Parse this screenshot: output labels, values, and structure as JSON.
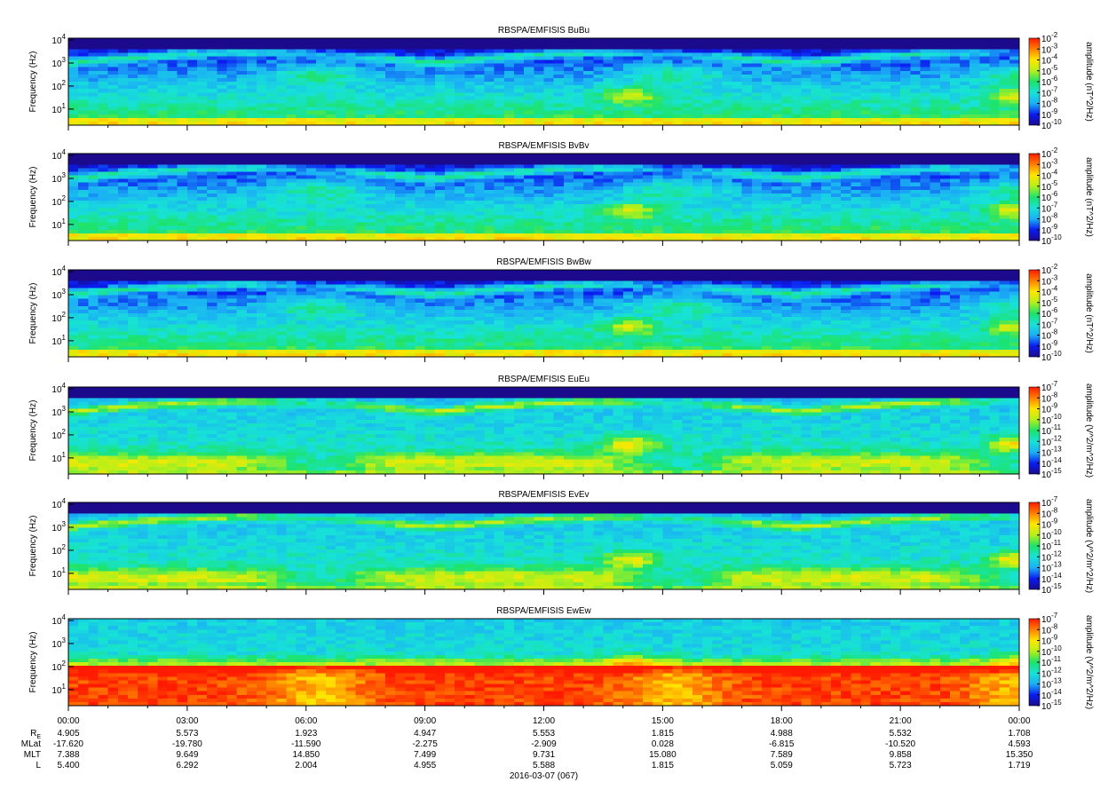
{
  "chart_data": [
    {
      "type": "heatmap",
      "title": "RBSPA/EMFISIS  BuBu",
      "ylabel": "Frequency (Hz)",
      "y_scale": "log",
      "ylim": [
        2,
        12000
      ],
      "y_ticks": [
        {
          "base": "10",
          "exp": "1"
        },
        {
          "base": "10",
          "exp": "2"
        },
        {
          "base": "10",
          "exp": "3"
        },
        {
          "base": "10",
          "exp": "4"
        }
      ],
      "colorbar": {
        "label": "amplitude (nT^2/Hz)",
        "scale": "log",
        "range": [
          1e-10,
          0.01
        ],
        "ticks": [
          {
            "base": "10",
            "exp": "-2"
          },
          {
            "base": "10",
            "exp": "-3"
          },
          {
            "base": "10",
            "exp": "-4"
          },
          {
            "base": "10",
            "exp": "-5"
          },
          {
            "base": "10",
            "exp": "-6"
          },
          {
            "base": "10",
            "exp": "-7"
          },
          {
            "base": "10",
            "exp": "-8"
          },
          {
            "base": "10",
            "exp": "-9"
          },
          {
            "base": "10",
            "exp": "-10"
          }
        ]
      },
      "colormap": [
        "#1b0a8c",
        "#0a1cf0",
        "#1bb0f5",
        "#17e2d7",
        "#1de36a",
        "#b4f01a",
        "#ffe600",
        "#ff7f00",
        "#ff1a00"
      ]
    },
    {
      "type": "heatmap",
      "title": "RBSPA/EMFISIS  BvBv",
      "ylabel": "Frequency (Hz)",
      "y_scale": "log",
      "ylim": [
        2,
        12000
      ],
      "y_ticks": [
        {
          "base": "10",
          "exp": "1"
        },
        {
          "base": "10",
          "exp": "2"
        },
        {
          "base": "10",
          "exp": "3"
        },
        {
          "base": "10",
          "exp": "4"
        }
      ],
      "colorbar": {
        "label": "amplitude (nT^2/Hz)",
        "scale": "log",
        "range": [
          1e-10,
          0.01
        ],
        "ticks": [
          {
            "base": "10",
            "exp": "-2"
          },
          {
            "base": "10",
            "exp": "-3"
          },
          {
            "base": "10",
            "exp": "-4"
          },
          {
            "base": "10",
            "exp": "-5"
          },
          {
            "base": "10",
            "exp": "-6"
          },
          {
            "base": "10",
            "exp": "-7"
          },
          {
            "base": "10",
            "exp": "-8"
          },
          {
            "base": "10",
            "exp": "-9"
          },
          {
            "base": "10",
            "exp": "-10"
          }
        ]
      },
      "colormap": [
        "#1b0a8c",
        "#0a1cf0",
        "#1bb0f5",
        "#17e2d7",
        "#1de36a",
        "#b4f01a",
        "#ffe600",
        "#ff7f00",
        "#ff1a00"
      ]
    },
    {
      "type": "heatmap",
      "title": "RBSPA/EMFISIS  BwBw",
      "ylabel": "Frequency (Hz)",
      "y_scale": "log",
      "ylim": [
        2,
        12000
      ],
      "y_ticks": [
        {
          "base": "10",
          "exp": "1"
        },
        {
          "base": "10",
          "exp": "2"
        },
        {
          "base": "10",
          "exp": "3"
        },
        {
          "base": "10",
          "exp": "4"
        }
      ],
      "colorbar": {
        "label": "amplitude (nT^2/Hz)",
        "scale": "log",
        "range": [
          1e-10,
          0.01
        ],
        "ticks": [
          {
            "base": "10",
            "exp": "-2"
          },
          {
            "base": "10",
            "exp": "-3"
          },
          {
            "base": "10",
            "exp": "-4"
          },
          {
            "base": "10",
            "exp": "-5"
          },
          {
            "base": "10",
            "exp": "-6"
          },
          {
            "base": "10",
            "exp": "-7"
          },
          {
            "base": "10",
            "exp": "-8"
          },
          {
            "base": "10",
            "exp": "-9"
          },
          {
            "base": "10",
            "exp": "-10"
          }
        ]
      },
      "colormap": [
        "#1b0a8c",
        "#0a1cf0",
        "#1bb0f5",
        "#17e2d7",
        "#1de36a",
        "#b4f01a",
        "#ffe600",
        "#ff7f00",
        "#ff1a00"
      ]
    },
    {
      "type": "heatmap",
      "title": "RBSPA/EMFISIS  EuEu",
      "ylabel": "Frequency (Hz)",
      "y_scale": "log",
      "ylim": [
        2,
        12000
      ],
      "y_ticks": [
        {
          "base": "10",
          "exp": "1"
        },
        {
          "base": "10",
          "exp": "2"
        },
        {
          "base": "10",
          "exp": "3"
        },
        {
          "base": "10",
          "exp": "4"
        }
      ],
      "colorbar": {
        "label": "amplitude (V^2/m^2/Hz)",
        "scale": "log",
        "range": [
          1e-15,
          1e-07
        ],
        "ticks": [
          {
            "base": "10",
            "exp": "-7"
          },
          {
            "base": "10",
            "exp": "-8"
          },
          {
            "base": "10",
            "exp": "-9"
          },
          {
            "base": "10",
            "exp": "-10"
          },
          {
            "base": "10",
            "exp": "-11"
          },
          {
            "base": "10",
            "exp": "-12"
          },
          {
            "base": "10",
            "exp": "-13"
          },
          {
            "base": "10",
            "exp": "-14"
          },
          {
            "base": "10",
            "exp": "-15"
          }
        ]
      },
      "colormap": [
        "#1b0a8c",
        "#0a1cf0",
        "#1bb0f5",
        "#17e2d7",
        "#1de36a",
        "#b4f01a",
        "#ffe600",
        "#ff7f00",
        "#ff1a00"
      ]
    },
    {
      "type": "heatmap",
      "title": "RBSPA/EMFISIS  EvEv",
      "ylabel": "Frequency (Hz)",
      "y_scale": "log",
      "ylim": [
        2,
        12000
      ],
      "y_ticks": [
        {
          "base": "10",
          "exp": "1"
        },
        {
          "base": "10",
          "exp": "2"
        },
        {
          "base": "10",
          "exp": "3"
        },
        {
          "base": "10",
          "exp": "4"
        }
      ],
      "colorbar": {
        "label": "amplitude (V^2/m^2/Hz)",
        "scale": "log",
        "range": [
          1e-15,
          1e-07
        ],
        "ticks": [
          {
            "base": "10",
            "exp": "-7"
          },
          {
            "base": "10",
            "exp": "-8"
          },
          {
            "base": "10",
            "exp": "-9"
          },
          {
            "base": "10",
            "exp": "-10"
          },
          {
            "base": "10",
            "exp": "-11"
          },
          {
            "base": "10",
            "exp": "-12"
          },
          {
            "base": "10",
            "exp": "-13"
          },
          {
            "base": "10",
            "exp": "-14"
          },
          {
            "base": "10",
            "exp": "-15"
          }
        ]
      },
      "colormap": [
        "#1b0a8c",
        "#0a1cf0",
        "#1bb0f5",
        "#17e2d7",
        "#1de36a",
        "#b4f01a",
        "#ffe600",
        "#ff7f00",
        "#ff1a00"
      ]
    },
    {
      "type": "heatmap",
      "title": "RBSPA/EMFISIS  EwEw",
      "ylabel": "Frequency (Hz)",
      "y_scale": "log",
      "ylim": [
        2,
        12000
      ],
      "y_ticks": [
        {
          "base": "10",
          "exp": "1"
        },
        {
          "base": "10",
          "exp": "2"
        },
        {
          "base": "10",
          "exp": "3"
        },
        {
          "base": "10",
          "exp": "4"
        }
      ],
      "colorbar": {
        "label": "amplitude (V^2/m^2/Hz)",
        "scale": "log",
        "range": [
          1e-15,
          1e-07
        ],
        "ticks": [
          {
            "base": "10",
            "exp": "-7"
          },
          {
            "base": "10",
            "exp": "-8"
          },
          {
            "base": "10",
            "exp": "-9"
          },
          {
            "base": "10",
            "exp": "-10"
          },
          {
            "base": "10",
            "exp": "-11"
          },
          {
            "base": "10",
            "exp": "-12"
          },
          {
            "base": "10",
            "exp": "-13"
          },
          {
            "base": "10",
            "exp": "-14"
          },
          {
            "base": "10",
            "exp": "-15"
          }
        ]
      },
      "colormap": [
        "#1b0a8c",
        "#0a1cf0",
        "#1bb0f5",
        "#17e2d7",
        "#1de36a",
        "#b4f01a",
        "#ffe600",
        "#ff7f00",
        "#ff1a00"
      ]
    }
  ],
  "x_axis": {
    "ticks": [
      "00:00",
      "03:00",
      "06:00",
      "09:00",
      "12:00",
      "15:00",
      "18:00",
      "21:00",
      "00:00"
    ],
    "ephemeris": [
      {
        "name": "R",
        "sub": "E",
        "values": [
          "4.905",
          "5.573",
          "1.923",
          "4.947",
          "5.553",
          "1.815",
          "4.988",
          "5.532",
          "1.708"
        ]
      },
      {
        "name": "MLat",
        "sub": "",
        "values": [
          "-17.620",
          "-19.780",
          "-11.590",
          "-2.275",
          "-2.909",
          "0.028",
          "-6.815",
          "-10.520",
          "4.593"
        ]
      },
      {
        "name": "MLT",
        "sub": "",
        "values": [
          "7.388",
          "9.649",
          "14.850",
          "7.499",
          "9.731",
          "15.080",
          "7.589",
          "9.858",
          "15.350"
        ]
      },
      {
        "name": "L",
        "sub": "",
        "values": [
          "5.400",
          "6.292",
          "2.004",
          "4.955",
          "5.588",
          "1.815",
          "5.059",
          "5.723",
          "1.719"
        ]
      }
    ],
    "date_label": "2016-03-07 (067)"
  }
}
